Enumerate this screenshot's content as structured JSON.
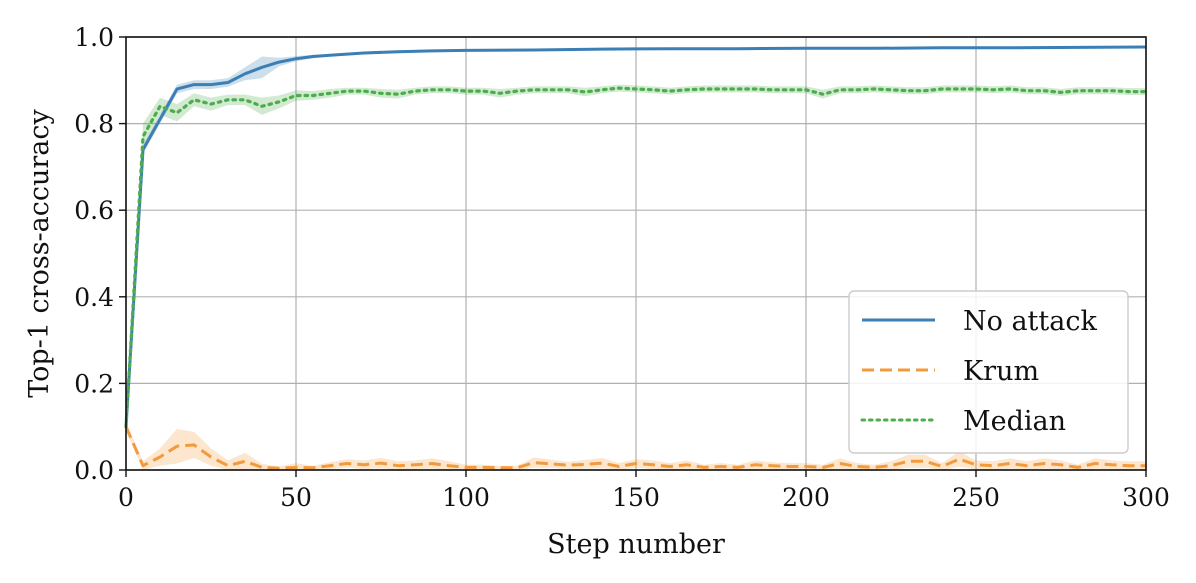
{
  "chart_data": {
    "type": "line",
    "title": "",
    "xlabel": "Step number",
    "ylabel": "Top-1 cross-accuracy",
    "xlim": [
      0,
      300
    ],
    "ylim": [
      0,
      1.0
    ],
    "xticks": [
      "0",
      "50",
      "100",
      "150",
      "200",
      "250",
      "300"
    ],
    "yticks": [
      "0.0",
      "0.2",
      "0.4",
      "0.6",
      "0.8",
      "1.0"
    ],
    "grid": true,
    "legend_position": "lower-right",
    "series": [
      {
        "name": "No attack",
        "color": "#3b7fb5",
        "style": "solid",
        "x": [
          0,
          5,
          10,
          15,
          20,
          25,
          30,
          35,
          40,
          45,
          50,
          55,
          60,
          70,
          80,
          90,
          100,
          120,
          140,
          160,
          180,
          200,
          220,
          240,
          260,
          280,
          300
        ],
        "y": [
          0.1,
          0.74,
          0.81,
          0.88,
          0.89,
          0.89,
          0.895,
          0.915,
          0.93,
          0.942,
          0.95,
          0.955,
          0.958,
          0.963,
          0.966,
          0.968,
          0.969,
          0.97,
          0.972,
          0.973,
          0.973,
          0.974,
          0.974,
          0.975,
          0.975,
          0.976,
          0.977
        ],
        "band": [
          0.01,
          0.01,
          0.01,
          0.01,
          0.01,
          0.01,
          0.01,
          0.015,
          0.025,
          0.01,
          0.006,
          0.004,
          0.003,
          0.003,
          0.003,
          0.003,
          0.002,
          0.002,
          0.002,
          0.002,
          0.002,
          0.002,
          0.002,
          0.002,
          0.002,
          0.002,
          0.002
        ]
      },
      {
        "name": "Krum",
        "color": "#f39a3c",
        "style": "dashed",
        "x": [
          0,
          5,
          10,
          15,
          20,
          25,
          30,
          35,
          40,
          45,
          50,
          55,
          60,
          65,
          70,
          75,
          80,
          85,
          90,
          95,
          100,
          105,
          110,
          115,
          120,
          125,
          130,
          135,
          140,
          145,
          150,
          155,
          160,
          165,
          170,
          175,
          180,
          185,
          190,
          195,
          200,
          205,
          210,
          215,
          220,
          225,
          230,
          235,
          240,
          245,
          250,
          255,
          260,
          265,
          270,
          275,
          280,
          285,
          290,
          295,
          300
        ],
        "y": [
          0.1,
          0.01,
          0.03,
          0.055,
          0.058,
          0.03,
          0.01,
          0.02,
          0.006,
          0.004,
          0.006,
          0.005,
          0.01,
          0.015,
          0.012,
          0.016,
          0.01,
          0.012,
          0.015,
          0.01,
          0.006,
          0.006,
          0.005,
          0.005,
          0.017,
          0.014,
          0.011,
          0.013,
          0.016,
          0.008,
          0.015,
          0.012,
          0.008,
          0.012,
          0.006,
          0.008,
          0.006,
          0.012,
          0.01,
          0.008,
          0.008,
          0.006,
          0.015,
          0.008,
          0.006,
          0.01,
          0.02,
          0.02,
          0.008,
          0.025,
          0.012,
          0.01,
          0.015,
          0.01,
          0.015,
          0.012,
          0.006,
          0.015,
          0.012,
          0.01,
          0.01
        ],
        "band": [
          0.01,
          0.01,
          0.02,
          0.04,
          0.03,
          0.02,
          0.012,
          0.02,
          0.008,
          0.004,
          0.01,
          0.005,
          0.008,
          0.01,
          0.01,
          0.012,
          0.01,
          0.01,
          0.012,
          0.01,
          0.006,
          0.006,
          0.005,
          0.005,
          0.012,
          0.01,
          0.008,
          0.01,
          0.012,
          0.008,
          0.01,
          0.01,
          0.008,
          0.01,
          0.006,
          0.008,
          0.006,
          0.01,
          0.008,
          0.008,
          0.008,
          0.006,
          0.012,
          0.008,
          0.006,
          0.01,
          0.015,
          0.015,
          0.008,
          0.018,
          0.01,
          0.01,
          0.012,
          0.01,
          0.012,
          0.01,
          0.006,
          0.012,
          0.01,
          0.01,
          0.01
        ]
      },
      {
        "name": "Median",
        "color": "#4cad4c",
        "style": "dotted",
        "x": [
          0,
          5,
          10,
          15,
          20,
          25,
          30,
          35,
          40,
          45,
          50,
          55,
          60,
          65,
          70,
          75,
          80,
          85,
          90,
          95,
          100,
          105,
          110,
          115,
          120,
          125,
          130,
          135,
          140,
          145,
          150,
          155,
          160,
          165,
          170,
          175,
          180,
          185,
          190,
          195,
          200,
          205,
          210,
          215,
          220,
          225,
          230,
          235,
          240,
          245,
          250,
          255,
          260,
          265,
          270,
          275,
          280,
          285,
          290,
          295,
          300
        ],
        "y": [
          0.1,
          0.77,
          0.84,
          0.825,
          0.855,
          0.845,
          0.855,
          0.855,
          0.84,
          0.85,
          0.865,
          0.865,
          0.87,
          0.875,
          0.875,
          0.87,
          0.868,
          0.875,
          0.878,
          0.878,
          0.875,
          0.875,
          0.87,
          0.875,
          0.878,
          0.878,
          0.878,
          0.873,
          0.878,
          0.882,
          0.88,
          0.878,
          0.875,
          0.878,
          0.88,
          0.88,
          0.88,
          0.88,
          0.878,
          0.878,
          0.878,
          0.868,
          0.878,
          0.878,
          0.88,
          0.878,
          0.876,
          0.876,
          0.88,
          0.88,
          0.88,
          0.878,
          0.88,
          0.876,
          0.876,
          0.872,
          0.876,
          0.876,
          0.876,
          0.874,
          0.874
        ],
        "band": [
          0.01,
          0.03,
          0.02,
          0.02,
          0.015,
          0.015,
          0.012,
          0.012,
          0.02,
          0.015,
          0.012,
          0.01,
          0.01,
          0.008,
          0.008,
          0.01,
          0.01,
          0.008,
          0.008,
          0.008,
          0.008,
          0.008,
          0.01,
          0.008,
          0.008,
          0.008,
          0.008,
          0.01,
          0.008,
          0.008,
          0.008,
          0.008,
          0.008,
          0.008,
          0.008,
          0.008,
          0.008,
          0.008,
          0.008,
          0.008,
          0.008,
          0.01,
          0.008,
          0.008,
          0.008,
          0.008,
          0.008,
          0.008,
          0.008,
          0.008,
          0.008,
          0.008,
          0.008,
          0.008,
          0.008,
          0.008,
          0.008,
          0.008,
          0.008,
          0.008,
          0.008
        ]
      }
    ]
  }
}
